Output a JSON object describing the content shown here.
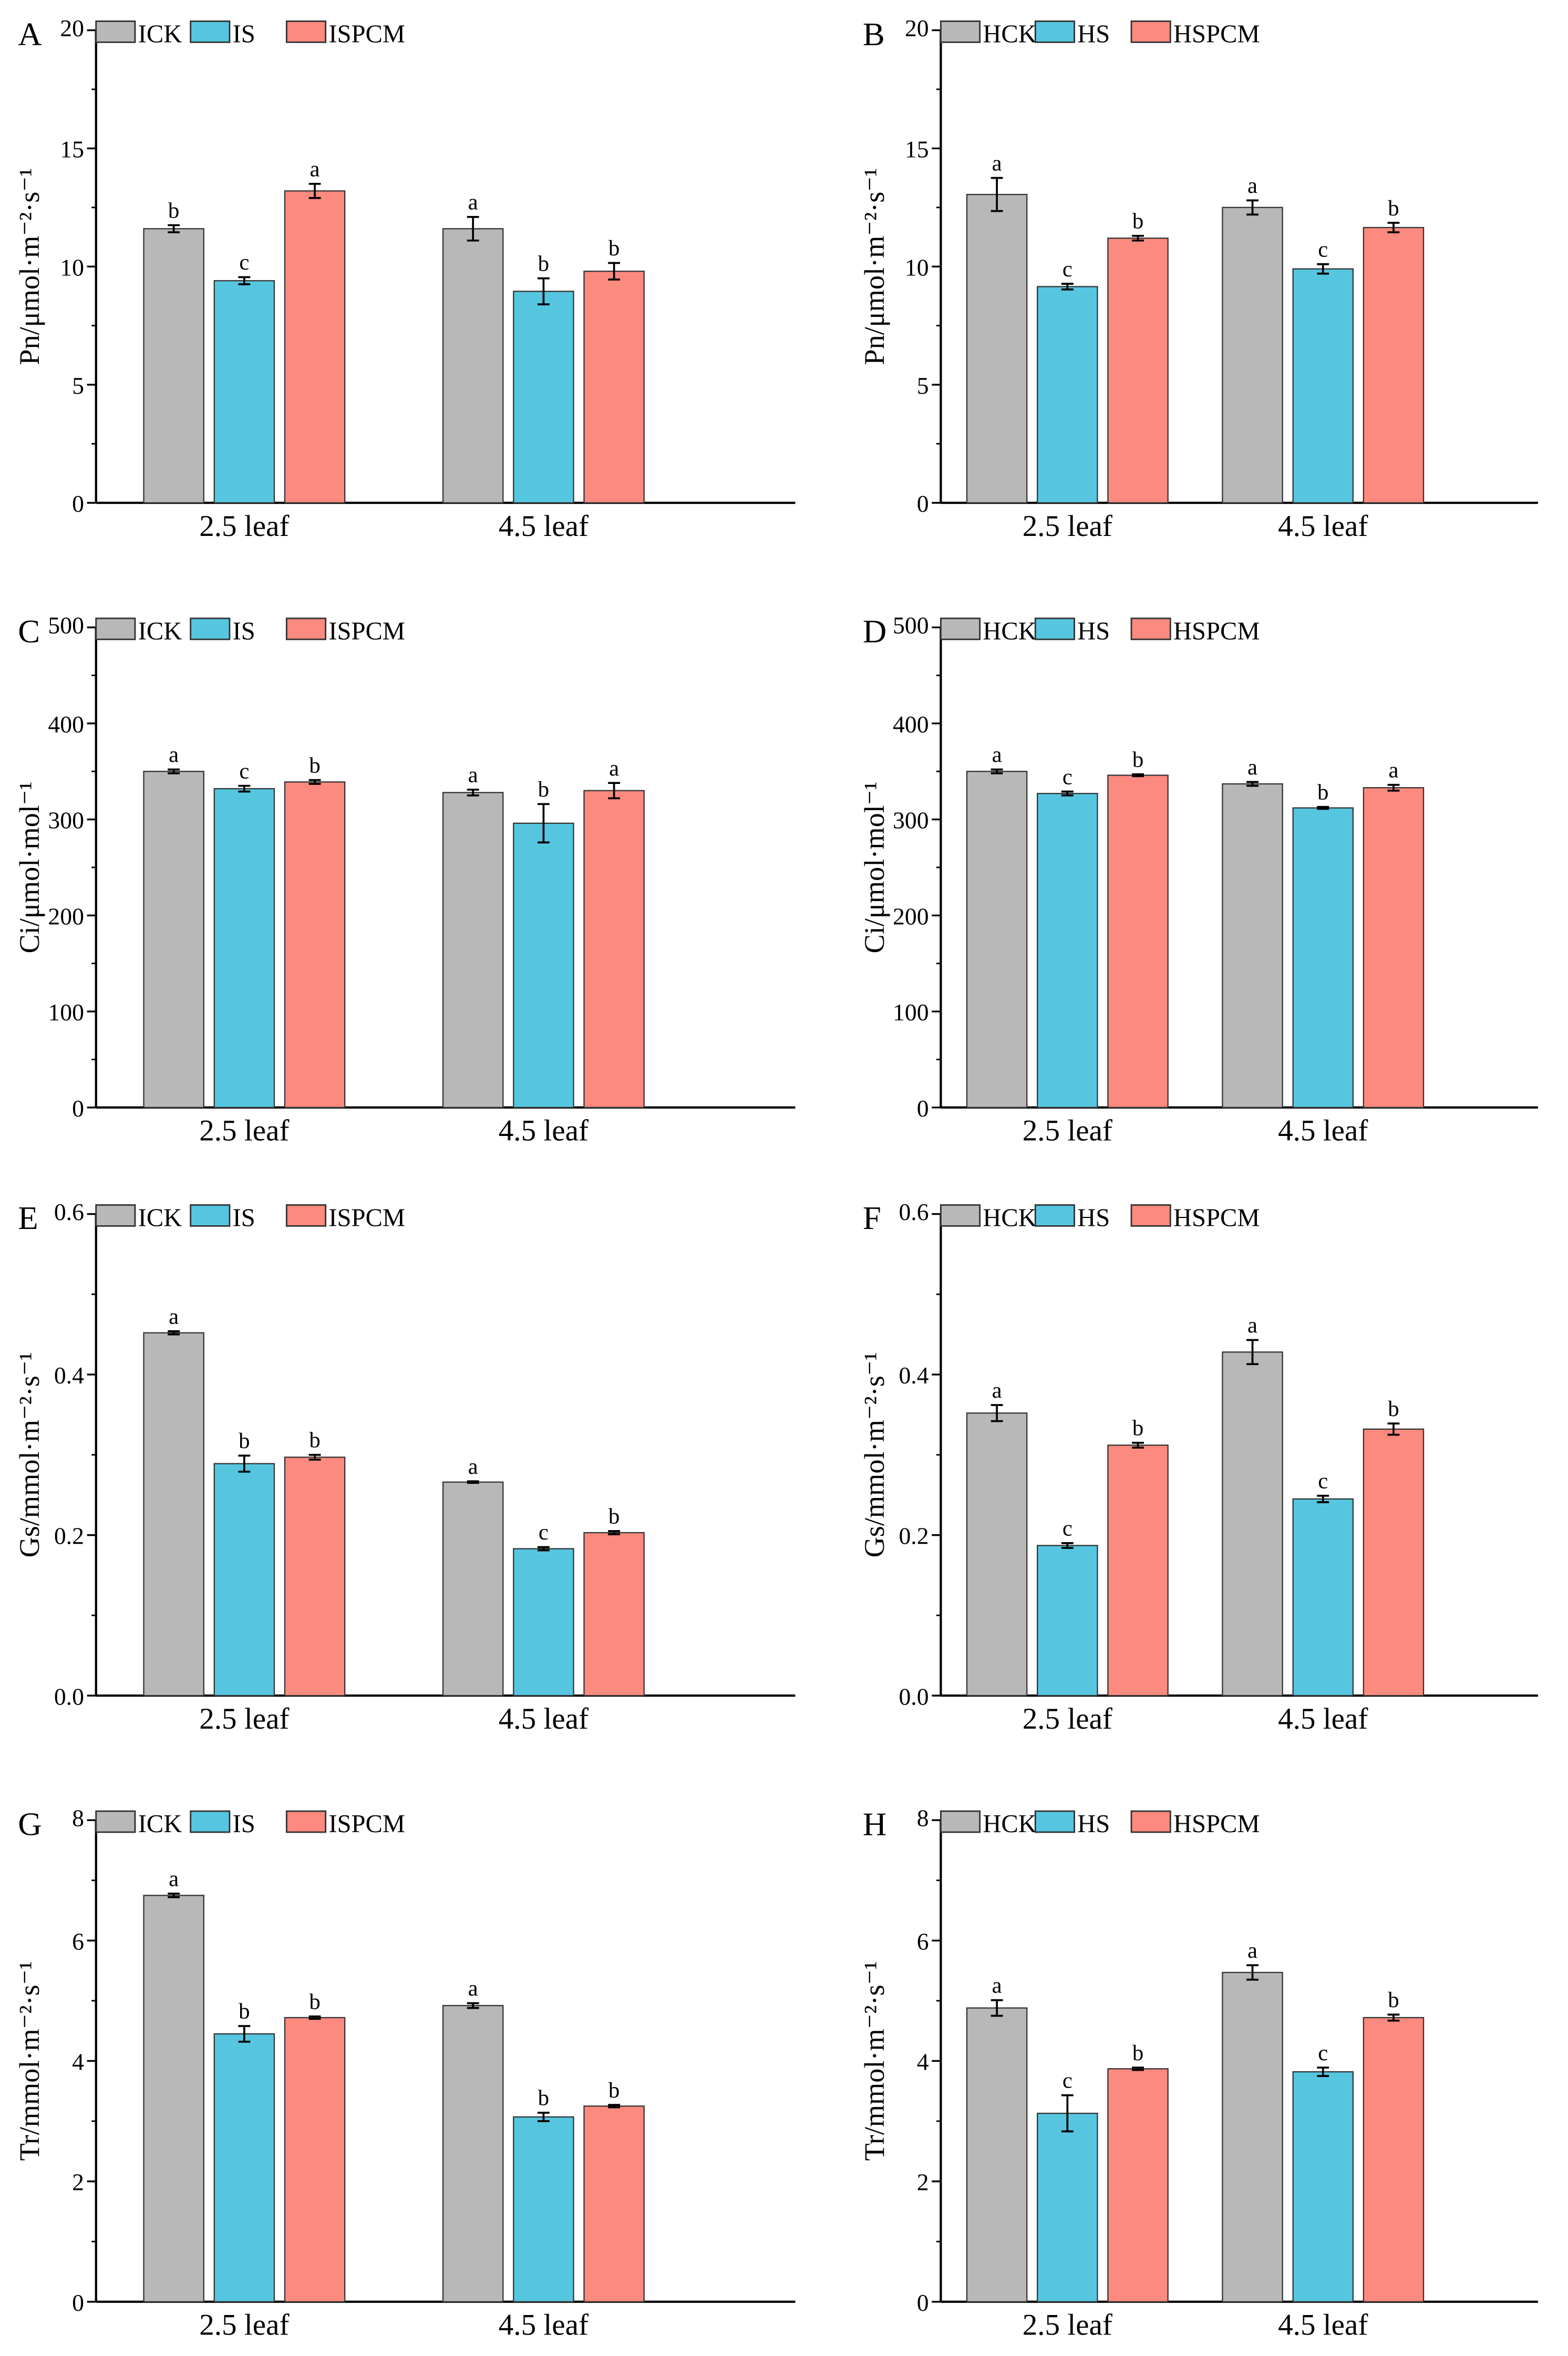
{
  "colors": {
    "control": "#b8b8b8",
    "stress": "#56c6e0",
    "pcm": "#fc8a7e",
    "axis": "#000000"
  },
  "chart_data": [
    {
      "panel": "A",
      "type": "bar",
      "ylabel": "Pn/μmol·m⁻²·s⁻¹",
      "ylim": [
        0,
        20
      ],
      "yticks": [
        "0",
        "5",
        "10",
        "15",
        "20"
      ],
      "categories": [
        "2.5 leaf",
        "4.5 leaf"
      ],
      "legend": [
        "ICK",
        "IS",
        "ISPCM"
      ],
      "legend_position": "top-left",
      "series": [
        {
          "name": "ICK",
          "values": [
            11.6,
            11.6
          ],
          "errors": [
            0.15,
            0.5
          ],
          "letters": [
            "b",
            "a"
          ]
        },
        {
          "name": "IS",
          "values": [
            9.4,
            8.95
          ],
          "errors": [
            0.15,
            0.55
          ],
          "letters": [
            "c",
            "b"
          ]
        },
        {
          "name": "ISPCM",
          "values": [
            13.2,
            9.8
          ],
          "errors": [
            0.3,
            0.35
          ],
          "letters": [
            "a",
            "b"
          ]
        }
      ]
    },
    {
      "panel": "B",
      "type": "bar",
      "ylabel": "Pn/μmol·m⁻²·s⁻¹",
      "ylim": [
        0,
        20
      ],
      "yticks": [
        "0",
        "5",
        "10",
        "15",
        "20"
      ],
      "categories": [
        "2.5 leaf",
        "4.5 leaf"
      ],
      "legend": [
        "HCK",
        "HS",
        "HSPCM"
      ],
      "legend_position": "top-left",
      "series": [
        {
          "name": "HCK",
          "values": [
            13.05,
            12.5
          ],
          "errors": [
            0.7,
            0.3
          ],
          "letters": [
            "a",
            "a"
          ]
        },
        {
          "name": "HS",
          "values": [
            9.15,
            9.9
          ],
          "errors": [
            0.12,
            0.2
          ],
          "letters": [
            "c",
            "c"
          ]
        },
        {
          "name": "HSPCM",
          "values": [
            11.2,
            11.65
          ],
          "errors": [
            0.1,
            0.2
          ],
          "letters": [
            "b",
            "b"
          ]
        }
      ]
    },
    {
      "panel": "C",
      "type": "bar",
      "ylabel": "Ci/μmol·mol⁻¹",
      "ylim": [
        0,
        500
      ],
      "yticks": [
        "0",
        "100",
        "200",
        "300",
        "400",
        "500"
      ],
      "categories": [
        "2.5 leaf",
        "4.5 leaf"
      ],
      "legend": [
        "ICK",
        "IS",
        "ISPCM"
      ],
      "legend_position": "top-left",
      "series": [
        {
          "name": "ICK",
          "values": [
            350,
            328
          ],
          "errors": [
            2,
            3
          ],
          "letters": [
            "a",
            "a"
          ]
        },
        {
          "name": "IS",
          "values": [
            332,
            296
          ],
          "errors": [
            3,
            20
          ],
          "letters": [
            "c",
            "b"
          ]
        },
        {
          "name": "ISPCM",
          "values": [
            339,
            330
          ],
          "errors": [
            2,
            8
          ],
          "letters": [
            "b",
            "a"
          ]
        }
      ]
    },
    {
      "panel": "D",
      "type": "bar",
      "ylabel": "Ci/μmol·mol⁻¹",
      "ylim": [
        0,
        500
      ],
      "yticks": [
        "0",
        "100",
        "200",
        "300",
        "400",
        "500"
      ],
      "categories": [
        "2.5 leaf",
        "4.5 leaf"
      ],
      "legend": [
        "HCK",
        "HS",
        "HSPCM"
      ],
      "legend_position": "top-left",
      "series": [
        {
          "name": "HCK",
          "values": [
            350,
            337
          ],
          "errors": [
            2,
            2
          ],
          "letters": [
            "a",
            "a"
          ]
        },
        {
          "name": "HS",
          "values": [
            327,
            312
          ],
          "errors": [
            2,
            1
          ],
          "letters": [
            "c",
            "b"
          ]
        },
        {
          "name": "HSPCM",
          "values": [
            346,
            333
          ],
          "errors": [
            1,
            3
          ],
          "letters": [
            "b",
            "a"
          ]
        }
      ]
    },
    {
      "panel": "E",
      "type": "bar",
      "ylabel": "Gs/mmol·m⁻²·s⁻¹",
      "ylim": [
        0,
        0.6
      ],
      "yticks": [
        "0.0",
        "0.2",
        "0.4",
        "0.6"
      ],
      "categories": [
        "2.5 leaf",
        "4.5 leaf"
      ],
      "legend": [
        "ICK",
        "IS",
        "ISPCM"
      ],
      "legend_position": "top-left",
      "series": [
        {
          "name": "ICK",
          "values": [
            0.452,
            0.266
          ],
          "errors": [
            0.002,
            0.001
          ],
          "letters": [
            "a",
            "a"
          ]
        },
        {
          "name": "IS",
          "values": [
            0.289,
            0.183
          ],
          "errors": [
            0.01,
            0.002
          ],
          "letters": [
            "b",
            "c"
          ]
        },
        {
          "name": "ISPCM",
          "values": [
            0.297,
            0.203
          ],
          "errors": [
            0.003,
            0.002
          ],
          "letters": [
            "b",
            "b"
          ]
        }
      ]
    },
    {
      "panel": "F",
      "type": "bar",
      "ylabel": "Gs/mmol·m⁻²·s⁻¹",
      "ylim": [
        0,
        0.6
      ],
      "yticks": [
        "0.0",
        "0.2",
        "0.4",
        "0.6"
      ],
      "categories": [
        "2.5 leaf",
        "4.5 leaf"
      ],
      "legend": [
        "HCK",
        "HS",
        "HSPCM"
      ],
      "legend_position": "top-left",
      "series": [
        {
          "name": "HCK",
          "values": [
            0.352,
            0.428
          ],
          "errors": [
            0.01,
            0.015
          ],
          "letters": [
            "a",
            "a"
          ]
        },
        {
          "name": "HS",
          "values": [
            0.187,
            0.245
          ],
          "errors": [
            0.003,
            0.004
          ],
          "letters": [
            "c",
            "c"
          ]
        },
        {
          "name": "HSPCM",
          "values": [
            0.312,
            0.332
          ],
          "errors": [
            0.003,
            0.007
          ],
          "letters": [
            "b",
            "b"
          ]
        }
      ]
    },
    {
      "panel": "G",
      "type": "bar",
      "ylabel": "Tr/mmol·m⁻²·s⁻¹",
      "ylim": [
        0,
        8
      ],
      "yticks": [
        "0",
        "2",
        "4",
        "6",
        "8"
      ],
      "categories": [
        "2.5 leaf",
        "4.5 leaf"
      ],
      "legend": [
        "ICK",
        "IS",
        "ISPCM"
      ],
      "legend_position": "top-left",
      "series": [
        {
          "name": "ICK",
          "values": [
            6.75,
            4.92
          ],
          "errors": [
            0.03,
            0.04
          ],
          "letters": [
            "a",
            "a"
          ]
        },
        {
          "name": "IS",
          "values": [
            4.45,
            3.07
          ],
          "errors": [
            0.13,
            0.07
          ],
          "letters": [
            "b",
            "b"
          ]
        },
        {
          "name": "ISPCM",
          "values": [
            4.72,
            3.25
          ],
          "errors": [
            0.02,
            0.02
          ],
          "letters": [
            "b",
            "b"
          ]
        }
      ]
    },
    {
      "panel": "H",
      "type": "bar",
      "ylabel": "Tr/mmol·m⁻²·s⁻¹",
      "ylim": [
        0,
        8
      ],
      "yticks": [
        "0",
        "2",
        "4",
        "6",
        "8"
      ],
      "categories": [
        "2.5 leaf",
        "4.5 leaf"
      ],
      "legend": [
        "HCK",
        "HS",
        "HSPCM"
      ],
      "legend_position": "top-left",
      "series": [
        {
          "name": "HCK",
          "values": [
            4.88,
            5.47
          ],
          "errors": [
            0.13,
            0.12
          ],
          "letters": [
            "a",
            "a"
          ]
        },
        {
          "name": "HS",
          "values": [
            3.13,
            3.82
          ],
          "errors": [
            0.3,
            0.07
          ],
          "letters": [
            "c",
            "c"
          ]
        },
        {
          "name": "HSPCM",
          "values": [
            3.87,
            4.72
          ],
          "errors": [
            0.02,
            0.05
          ],
          "letters": [
            "b",
            "b"
          ]
        }
      ]
    }
  ]
}
